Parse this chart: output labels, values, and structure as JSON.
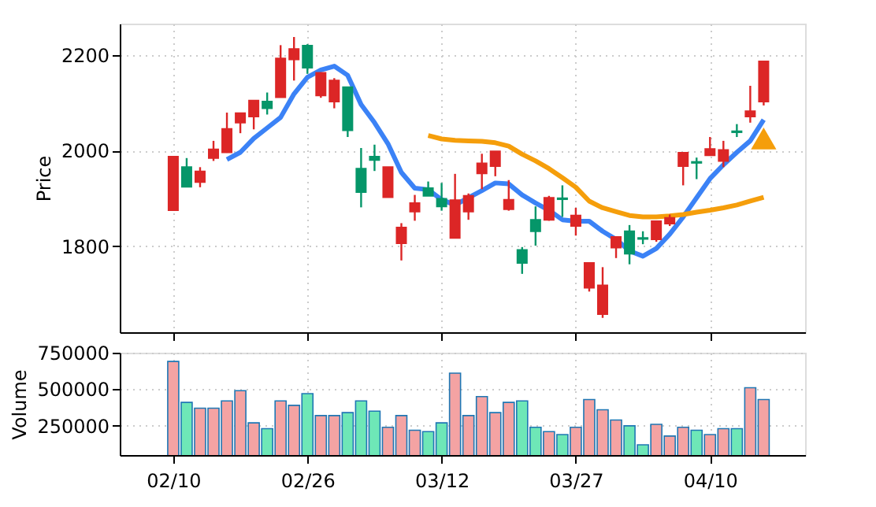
{
  "chart_data": [
    {
      "type": "candlestick",
      "ylabel": "Price",
      "categories": [
        null,
        null,
        null,
        null,
        null,
        null,
        null,
        null,
        null,
        null,
        null,
        null,
        null,
        null,
        null,
        null,
        null,
        null,
        null,
        null,
        null,
        null,
        null,
        null,
        null,
        null,
        null,
        null,
        null,
        null,
        null,
        null,
        null,
        null,
        null,
        null,
        null,
        null,
        null,
        null,
        null,
        null,
        null,
        null,
        null
      ],
      "ohlc": [
        [
          1875,
          1987,
          1875,
          1987
        ],
        [
          1965,
          1984,
          1924,
          1924
        ],
        [
          1934,
          1965,
          1923,
          1956
        ],
        [
          1984,
          2020,
          1978,
          2002
        ],
        [
          1996,
          2079,
          1995,
          2045
        ],
        [
          2058,
          2078,
          2036,
          2078
        ],
        [
          2071,
          2104,
          2044,
          2104
        ],
        [
          2102,
          2121,
          2075,
          2088
        ],
        [
          2111,
          2220,
          2111,
          2192
        ],
        [
          2190,
          2237,
          2146,
          2212
        ],
        [
          2219,
          2222,
          2160,
          2173
        ],
        [
          2115,
          2162,
          2110,
          2162
        ],
        [
          2102,
          2151,
          2088,
          2146
        ],
        [
          2132,
          2132,
          2028,
          2042
        ],
        [
          1962,
          2005,
          1881,
          1913
        ],
        [
          1987,
          2012,
          1957,
          1980
        ],
        [
          1902,
          1965,
          1902,
          1965
        ],
        [
          1806,
          1848,
          1770,
          1839
        ],
        [
          1872,
          1907,
          1853,
          1890
        ],
        [
          1921,
          1935,
          1905,
          1905
        ],
        [
          1899,
          1932,
          1874,
          1883
        ],
        [
          1817,
          1951,
          1817,
          1896
        ],
        [
          1872,
          1910,
          1855,
          1905
        ],
        [
          1952,
          1993,
          1919,
          1973
        ],
        [
          1967,
          1998,
          1946,
          1998
        ],
        [
          1877,
          1938,
          1874,
          1897
        ],
        [
          1792,
          1798,
          1742,
          1765
        ],
        [
          1855,
          1883,
          1801,
          1831
        ],
        [
          1855,
          1905,
          1853,
          1901
        ],
        [
          1900,
          1927,
          1861,
          1898
        ],
        [
          1842,
          1880,
          1822,
          1864
        ],
        [
          1713,
          1765,
          1705,
          1765
        ],
        [
          1658,
          1756,
          1650,
          1718
        ],
        [
          1797,
          1819,
          1775,
          1819
        ],
        [
          1831,
          1844,
          1762,
          1784
        ],
        [
          1817,
          1831,
          1804,
          1815
        ],
        [
          1814,
          1852,
          1809,
          1852
        ],
        [
          1847,
          1866,
          1842,
          1859
        ],
        [
          1967,
          1995,
          1927,
          1995
        ],
        [
          1976,
          1985,
          1940,
          1974
        ],
        [
          1990,
          2028,
          1990,
          2003
        ],
        [
          1978,
          2020,
          1965,
          2001
        ],
        [
          2040,
          2055,
          2028,
          2038
        ],
        [
          2071,
          2135,
          2058,
          2082
        ],
        [
          2102,
          2186,
          2094,
          2186
        ]
      ],
      "colors": [
        "#dc2626",
        "#059669",
        "#dc2626",
        "#dc2626",
        "#dc2626",
        "#dc2626",
        "#dc2626",
        "#059669",
        "#dc2626",
        "#dc2626",
        "#059669",
        "#dc2626",
        "#dc2626",
        "#059669",
        "#059669",
        "#059669",
        "#dc2626",
        "#dc2626",
        "#dc2626",
        "#059669",
        "#059669",
        "#dc2626",
        "#dc2626",
        "#dc2626",
        "#dc2626",
        "#dc2626",
        "#059669",
        "#059669",
        "#dc2626",
        "#059669",
        "#dc2626",
        "#dc2626",
        "#dc2626",
        "#dc2626",
        "#059669",
        "#059669",
        "#dc2626",
        "#dc2626",
        "#dc2626",
        "#059669",
        "#dc2626",
        "#dc2626",
        "#059669",
        "#dc2626",
        "#dc2626"
      ],
      "series": [
        {
          "type": "line",
          "color": "#3b82f6",
          "values": [
            null,
            null,
            null,
            null,
            1981,
            1996,
            2025,
            2047,
            2069,
            2118,
            2153,
            2168,
            2176,
            2157,
            2096,
            2058,
            2014,
            1954,
            1921,
            1918,
            1897,
            1886,
            1901,
            1916,
            1932,
            1930,
            1907,
            1890,
            1875,
            1855,
            1852,
            1852,
            1831,
            1814,
            1790,
            1779,
            1795,
            1825,
            1861,
            1901,
            1941,
            1970,
            1996,
            2020,
            2064
          ]
        },
        {
          "type": "line",
          "color": "#f59e0b",
          "values": [
            null,
            null,
            null,
            null,
            null,
            null,
            null,
            null,
            null,
            null,
            null,
            null,
            null,
            null,
            null,
            null,
            null,
            null,
            null,
            2031,
            2024,
            2021,
            2020,
            2019,
            2016,
            2009,
            1992,
            1978,
            1962,
            1943,
            1923,
            1894,
            1880,
            1872,
            1864,
            1861,
            1861,
            1863,
            1866,
            1871,
            1875,
            1880,
            1886,
            1894,
            1902
          ]
        },
        {
          "type": "scatter",
          "marker": "triangle",
          "color": "#f59e0b",
          "values": [
            null,
            null,
            null,
            null,
            null,
            null,
            null,
            null,
            null,
            null,
            null,
            null,
            null,
            null,
            null,
            null,
            null,
            null,
            null,
            null,
            null,
            null,
            null,
            null,
            null,
            null,
            null,
            null,
            null,
            null,
            null,
            null,
            null,
            null,
            null,
            null,
            null,
            null,
            null,
            null,
            null,
            null,
            null,
            null,
            2025
          ]
        }
      ],
      "ylim": [
        1620,
        2265
      ],
      "yticks": [
        1800,
        2000,
        2200
      ],
      "tick_labels": "y",
      "grid": true
    },
    {
      "type": "bar",
      "ylabel": "Volume",
      "categories": [
        "02/10",
        null,
        null,
        null,
        null,
        null,
        null,
        null,
        null,
        null,
        "02/26",
        null,
        null,
        null,
        null,
        null,
        null,
        null,
        null,
        null,
        "03/12",
        null,
        null,
        null,
        null,
        null,
        null,
        null,
        null,
        null,
        "03/27",
        null,
        null,
        null,
        null,
        null,
        null,
        null,
        null,
        null,
        "04/10",
        null,
        null,
        null,
        null
      ],
      "values": [
        690000,
        410000,
        370000,
        370000,
        420000,
        490000,
        270000,
        230000,
        420000,
        390000,
        470000,
        320000,
        320000,
        340000,
        420000,
        350000,
        240000,
        320000,
        220000,
        210000,
        270000,
        610000,
        320000,
        450000,
        340000,
        410000,
        420000,
        240000,
        210000,
        190000,
        240000,
        430000,
        360000,
        290000,
        250000,
        120000,
        260000,
        180000,
        240000,
        220000,
        190000,
        230000,
        230000,
        510000,
        430000
      ],
      "colors": [
        "#f4a3a3",
        "#6ee7b7",
        "#f4a3a3",
        "#f4a3a3",
        "#f4a3a3",
        "#f4a3a3",
        "#f4a3a3",
        "#6ee7b7",
        "#f4a3a3",
        "#f4a3a3",
        "#6ee7b7",
        "#f4a3a3",
        "#f4a3a3",
        "#6ee7b7",
        "#6ee7b7",
        "#6ee7b7",
        "#f4a3a3",
        "#f4a3a3",
        "#f4a3a3",
        "#6ee7b7",
        "#6ee7b7",
        "#f4a3a3",
        "#f4a3a3",
        "#f4a3a3",
        "#f4a3a3",
        "#f4a3a3",
        "#6ee7b7",
        "#6ee7b7",
        "#f4a3a3",
        "#6ee7b7",
        "#f4a3a3",
        "#f4a3a3",
        "#f4a3a3",
        "#f4a3a3",
        "#6ee7b7",
        "#6ee7b7",
        "#f4a3a3",
        "#f4a3a3",
        "#f4a3a3",
        "#6ee7b7",
        "#f4a3a3",
        "#f4a3a3",
        "#6ee7b7",
        "#f4a3a3",
        "#f4a3a3"
      ],
      "ylim": [
        50000,
        750000
      ],
      "yticks": [
        250000,
        500000,
        750000
      ],
      "grid": true
    }
  ]
}
